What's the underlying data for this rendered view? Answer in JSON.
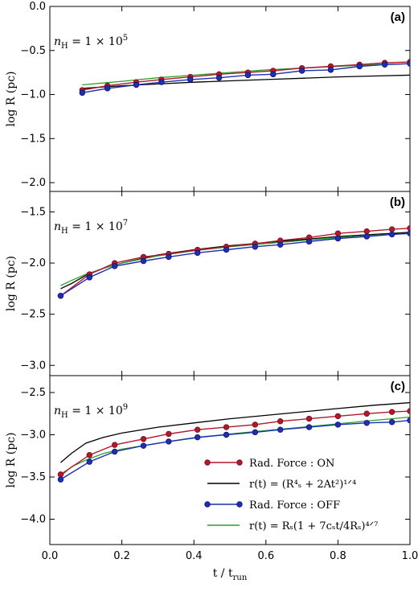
{
  "chart_data": {
    "type": "line",
    "xlabel": "t / t",
    "xlabel_sub": "run",
    "x_ticks": [
      "0.0",
      "0.2",
      "0.4",
      "0.6",
      "0.8",
      "1.0"
    ],
    "xlim": [
      0.0,
      1.0
    ],
    "colors": {
      "rad_on": "#b2182b",
      "rad_on_edge": "#7a0e1c",
      "rad_off": "#1f2fb4",
      "rad_off_edge": "#0a1570",
      "analytic_a": "#000000",
      "analytic_b": "#2ca02c"
    },
    "legend": {
      "placement": "lower-right (panel c)",
      "entries": [
        {
          "key": "rad_on",
          "text": "Rad. Force : ON"
        },
        {
          "key": "analytic_a",
          "text": "r(t) = (R⁴ₛ + 2At²)¹ᐟ⁴"
        },
        {
          "key": "rad_off",
          "text": "Rad. Force : OFF"
        },
        {
          "key": "analytic_b",
          "text": "r(t) = Rₛ(1 + 7cₛt/4Rₛ)⁴ᐟ⁷"
        }
      ]
    },
    "panels": [
      {
        "label": "(a)",
        "annotation": "n",
        "annotation_sub": "H",
        "annotation_rest": " = 1 × 10",
        "annotation_exp": "5",
        "ylabel": "log R (pc)",
        "ylim": [
          -2.1,
          0.0
        ],
        "y_ticks": [
          0.0,
          -0.5,
          -1.0,
          -1.5,
          -2.0
        ],
        "y_tick_labels": [
          "0.0",
          "−0.5",
          "−1.0",
          "−1.5",
          "−2.0"
        ],
        "series": [
          {
            "key": "analytic_a",
            "marker": false,
            "x": [
              0.09,
              0.2,
              0.3,
              0.4,
              0.5,
              0.6,
              0.7,
              0.8,
              0.9,
              1.0
            ],
            "y": [
              -0.93,
              -0.9,
              -0.88,
              -0.86,
              -0.845,
              -0.83,
              -0.815,
              -0.8,
              -0.79,
              -0.78
            ]
          },
          {
            "key": "analytic_b",
            "marker": false,
            "x": [
              0.09,
              0.2,
              0.3,
              0.4,
              0.5,
              0.6,
              0.7,
              0.8,
              0.9,
              1.0
            ],
            "y": [
              -0.89,
              -0.85,
              -0.81,
              -0.78,
              -0.75,
              -0.72,
              -0.7,
              -0.68,
              -0.66,
              -0.65
            ]
          },
          {
            "key": "rad_on",
            "marker": true,
            "x": [
              0.09,
              0.16,
              0.24,
              0.31,
              0.39,
              0.47,
              0.55,
              0.62,
              0.7,
              0.78,
              0.86,
              0.93,
              1.0
            ],
            "y": [
              -0.95,
              -0.9,
              -0.86,
              -0.83,
              -0.8,
              -0.77,
              -0.75,
              -0.73,
              -0.7,
              -0.68,
              -0.66,
              -0.64,
              -0.63
            ]
          },
          {
            "key": "rad_off",
            "marker": true,
            "x": [
              0.09,
              0.16,
              0.24,
              0.31,
              0.39,
              0.47,
              0.55,
              0.62,
              0.7,
              0.78,
              0.86,
              0.93,
              1.0
            ],
            "y": [
              -0.98,
              -0.93,
              -0.89,
              -0.86,
              -0.83,
              -0.81,
              -0.78,
              -0.77,
              -0.73,
              -0.72,
              -0.68,
              -0.66,
              -0.65
            ]
          }
        ]
      },
      {
        "label": "(b)",
        "annotation": "n",
        "annotation_sub": "H",
        "annotation_rest": " = 1 × 10",
        "annotation_exp": "7",
        "ylabel": "log R (pc)",
        "ylim": [
          -3.1,
          -1.3
        ],
        "y_ticks": [
          -1.5,
          -2.0,
          -2.5,
          -3.0
        ],
        "y_tick_labels": [
          "−1.5",
          "−2.0",
          "−2.5",
          "−3.0"
        ],
        "series": [
          {
            "key": "analytic_a",
            "marker": false,
            "x": [
              0.03,
              0.06,
              0.1,
              0.15,
              0.2,
              0.3,
              0.4,
              0.5,
              0.6,
              0.7,
              0.8,
              0.9,
              1.0
            ],
            "y": [
              -2.25,
              -2.2,
              -2.12,
              -2.05,
              -2.0,
              -1.92,
              -1.87,
              -1.83,
              -1.8,
              -1.77,
              -1.74,
              -1.72,
              -1.7
            ]
          },
          {
            "key": "analytic_b",
            "marker": false,
            "x": [
              0.03,
              0.06,
              0.1,
              0.15,
              0.2,
              0.3,
              0.4,
              0.5,
              0.6,
              0.7,
              0.8,
              0.9,
              1.0
            ],
            "y": [
              -2.22,
              -2.17,
              -2.11,
              -2.05,
              -2.0,
              -1.93,
              -1.88,
              -1.84,
              -1.81,
              -1.78,
              -1.75,
              -1.73,
              -1.71
            ]
          },
          {
            "key": "rad_on",
            "marker": true,
            "x": [
              0.03,
              0.11,
              0.18,
              0.26,
              0.33,
              0.41,
              0.49,
              0.57,
              0.64,
              0.72,
              0.8,
              0.88,
              0.95,
              1.0
            ],
            "y": [
              -2.32,
              -2.11,
              -2.0,
              -1.94,
              -1.91,
              -1.87,
              -1.84,
              -1.81,
              -1.78,
              -1.75,
              -1.71,
              -1.69,
              -1.67,
              -1.66
            ]
          },
          {
            "key": "rad_off",
            "marker": true,
            "x": [
              0.03,
              0.11,
              0.18,
              0.26,
              0.33,
              0.41,
              0.49,
              0.57,
              0.64,
              0.72,
              0.8,
              0.88,
              0.95,
              1.0
            ],
            "y": [
              -2.32,
              -2.14,
              -2.03,
              -1.98,
              -1.94,
              -1.9,
              -1.87,
              -1.84,
              -1.82,
              -1.79,
              -1.76,
              -1.74,
              -1.72,
              -1.71
            ]
          }
        ]
      },
      {
        "label": "(c)",
        "annotation": "n",
        "annotation_sub": "H",
        "annotation_rest": " = 1 × 10",
        "annotation_exp": "9",
        "ylabel": "log R (pc)",
        "ylim": [
          -4.3,
          -2.3
        ],
        "y_ticks": [
          -2.5,
          -3.0,
          -3.5,
          -4.0
        ],
        "y_tick_labels": [
          "−2.5",
          "−3.0",
          "−3.5",
          "−4.0"
        ],
        "series": [
          {
            "key": "analytic_a",
            "marker": false,
            "x": [
              0.03,
              0.06,
              0.1,
              0.15,
              0.2,
              0.3,
              0.4,
              0.5,
              0.6,
              0.7,
              0.8,
              0.9,
              1.0
            ],
            "y": [
              -3.33,
              -3.22,
              -3.1,
              -3.03,
              -2.98,
              -2.91,
              -2.86,
              -2.81,
              -2.77,
              -2.73,
              -2.69,
              -2.65,
              -2.62
            ]
          },
          {
            "key": "analytic_b",
            "marker": false,
            "x": [
              0.03,
              0.06,
              0.1,
              0.15,
              0.2,
              0.3,
              0.4,
              0.5,
              0.6,
              0.7,
              0.8,
              0.9,
              1.0
            ],
            "y": [
              -3.49,
              -3.38,
              -3.3,
              -3.22,
              -3.17,
              -3.1,
              -3.04,
              -2.99,
              -2.95,
              -2.91,
              -2.87,
              -2.83,
              -2.79
            ]
          },
          {
            "key": "rad_on",
            "marker": true,
            "x": [
              0.03,
              0.11,
              0.18,
              0.26,
              0.33,
              0.41,
              0.49,
              0.57,
              0.64,
              0.72,
              0.8,
              0.88,
              0.95,
              1.0
            ],
            "y": [
              -3.47,
              -3.24,
              -3.12,
              -3.05,
              -2.99,
              -2.94,
              -2.91,
              -2.88,
              -2.84,
              -2.81,
              -2.78,
              -2.75,
              -2.73,
              -2.72
            ]
          },
          {
            "key": "rad_off",
            "marker": true,
            "x": [
              0.03,
              0.11,
              0.18,
              0.26,
              0.33,
              0.41,
              0.49,
              0.57,
              0.64,
              0.72,
              0.8,
              0.88,
              0.95,
              1.0
            ],
            "y": [
              -3.53,
              -3.32,
              -3.2,
              -3.13,
              -3.08,
              -3.03,
              -3.0,
              -2.97,
              -2.94,
              -2.91,
              -2.88,
              -2.86,
              -2.85,
              -2.83
            ]
          }
        ]
      }
    ]
  }
}
